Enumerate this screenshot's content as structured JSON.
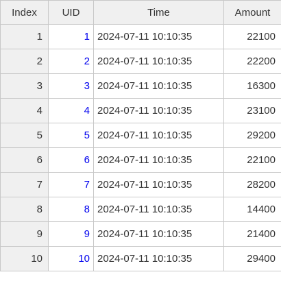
{
  "table": {
    "columns": [
      "Index",
      "UID",
      "Time",
      "Amount"
    ],
    "rows": [
      {
        "index": "1",
        "uid": "1",
        "time": "2024-07-11 10:10:35",
        "amount": "22100"
      },
      {
        "index": "2",
        "uid": "2",
        "time": "2024-07-11 10:10:35",
        "amount": "22200"
      },
      {
        "index": "3",
        "uid": "3",
        "time": "2024-07-11 10:10:35",
        "amount": "16300"
      },
      {
        "index": "4",
        "uid": "4",
        "time": "2024-07-11 10:10:35",
        "amount": "23100"
      },
      {
        "index": "5",
        "uid": "5",
        "time": "2024-07-11 10:10:35",
        "amount": "29200"
      },
      {
        "index": "6",
        "uid": "6",
        "time": "2024-07-11 10:10:35",
        "amount": "22100"
      },
      {
        "index": "7",
        "uid": "7",
        "time": "2024-07-11 10:10:35",
        "amount": "28200"
      },
      {
        "index": "8",
        "uid": "8",
        "time": "2024-07-11 10:10:35",
        "amount": "14400"
      },
      {
        "index": "9",
        "uid": "9",
        "time": "2024-07-11 10:10:35",
        "amount": "21400"
      },
      {
        "index": "10",
        "uid": "10",
        "time": "2024-07-11 10:10:35",
        "amount": "29400"
      }
    ]
  },
  "colors": {
    "header_bg": "#f0f0f0",
    "index_bg": "#f0f0f0",
    "link": "#0000ee",
    "border": "#c8c8c8",
    "text": "#333333"
  }
}
